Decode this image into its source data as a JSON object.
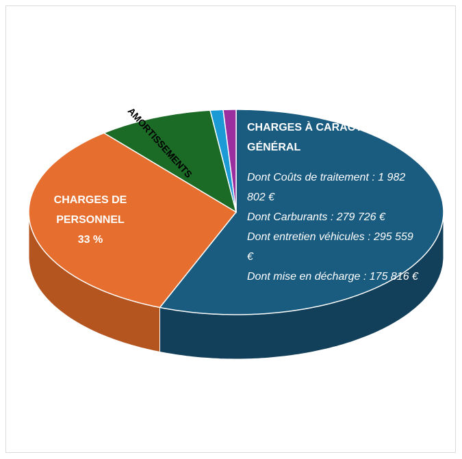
{
  "chart_data": {
    "type": "pie",
    "categories": [
      "CHARGES À CARACTÈRE GÉNÉRAL",
      "CHARGES DE PERSONNEL",
      "AMORTISSEMENTS",
      null,
      null
    ],
    "values": [
      56,
      33,
      9,
      1,
      1
    ],
    "value_labels": [
      null,
      "33 %",
      null,
      null,
      null
    ],
    "colors": [
      "#1a5b80",
      "#e66f2f",
      "#1b6b26",
      "#1c9ad6",
      "#9b2fa0"
    ],
    "side_colors": [
      "#123f59",
      "#b4541f",
      "#124a1a",
      "#146e99",
      "#6d2070"
    ],
    "annotations": [
      "Dont Coûts de traitement : 1 982 802 €",
      "Dont Carburants : 279 726 €",
      "Dont entretien véhicules : 295 559 €",
      "Dont mise en décharge : 175 816 €"
    ]
  }
}
